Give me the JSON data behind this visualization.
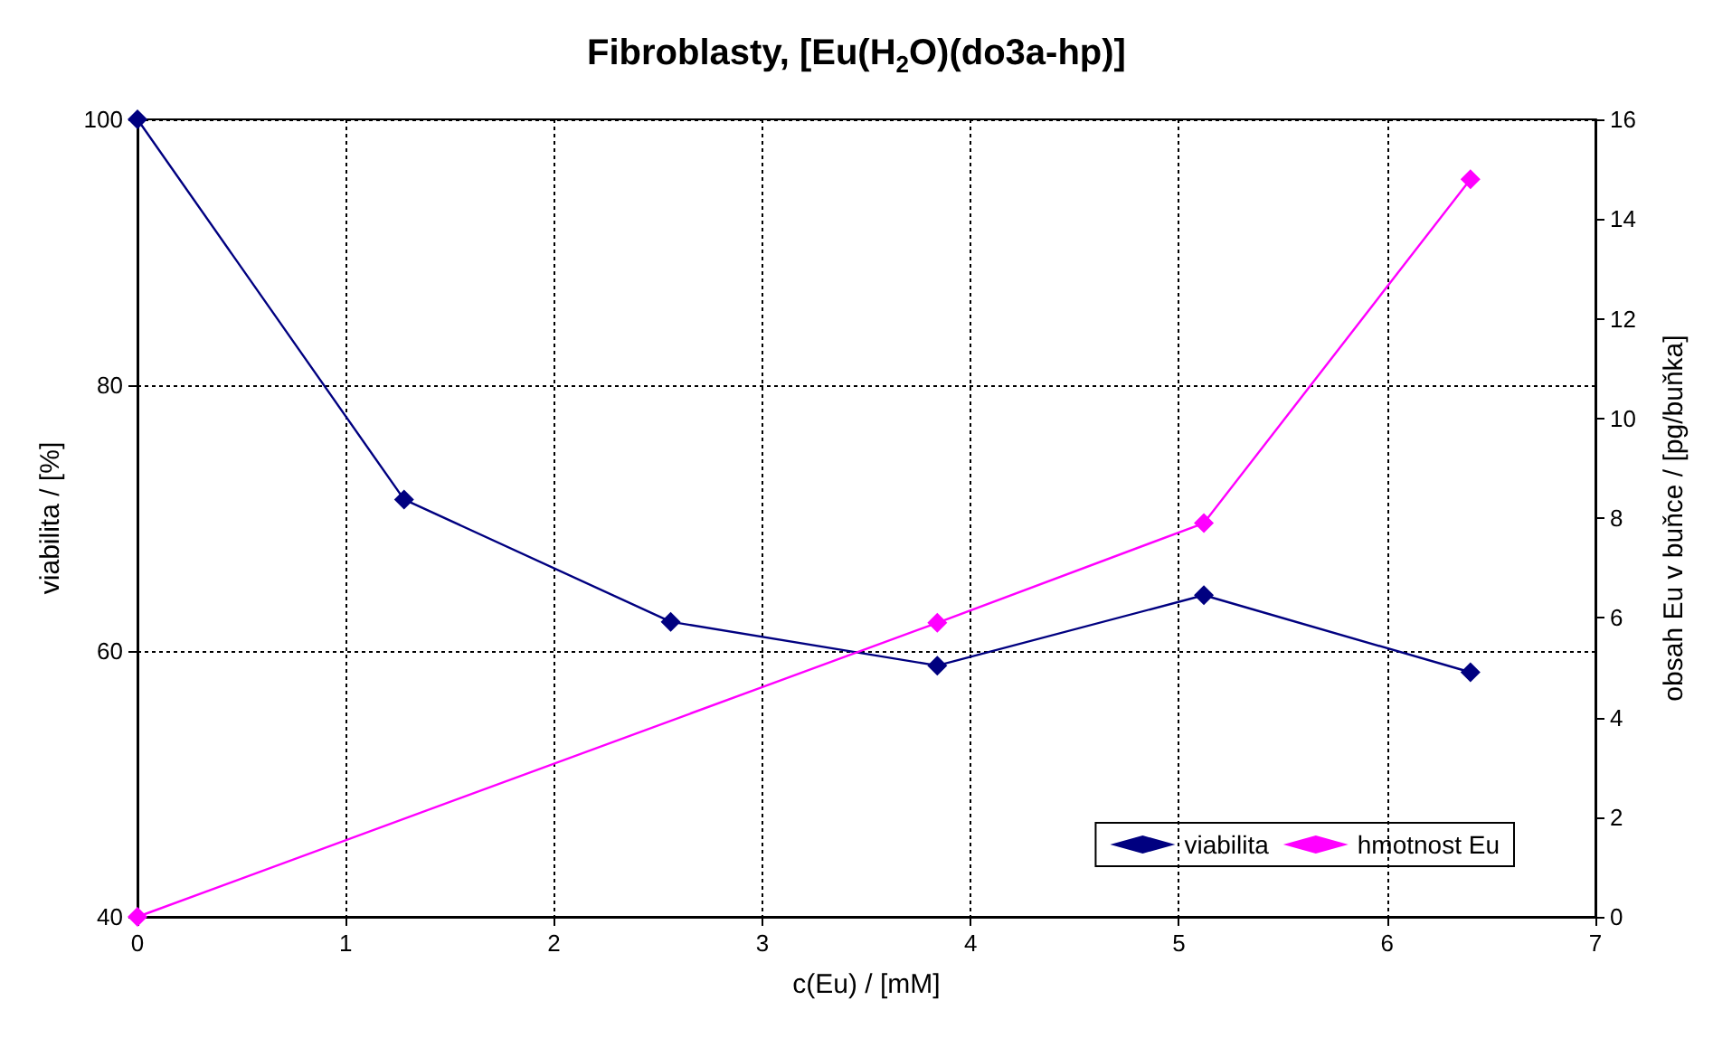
{
  "chart_data": {
    "type": "line",
    "title": "Fibroblasty, [Eu(H$_{2}$O)(do3a-hp)]",
    "xlabel": "c(Eu) / [mM]",
    "ylabel": "viabilita / [%]",
    "y2label": "obsah Eu v buňce / [pg/buňka]",
    "series": [
      {
        "name": "viabilita",
        "color": "#000080",
        "x": [
          0,
          1.28,
          2.56,
          3.84,
          5.12,
          6.4
        ],
        "values": [
          100,
          71.4,
          62.2,
          58.9,
          64.2,
          58.4
        ]
      },
      {
        "name": "hmotnost Eu",
        "color": "#ff00ff",
        "axis": "y2",
        "x": [
          0,
          3.84,
          5.12,
          6.4
        ],
        "values": [
          0,
          5.9,
          7.9,
          14.8
        ]
      }
    ],
    "xlim": [
      0,
      7
    ],
    "xticks": [
      0,
      1,
      2,
      3,
      4,
      5,
      6,
      7
    ],
    "ylim": [
      40,
      100
    ],
    "yticks": [
      40,
      60,
      80,
      100
    ],
    "y2lim": [
      0,
      16
    ],
    "y2ticks": [
      0,
      2,
      4,
      6,
      8,
      10,
      12,
      14,
      16
    ],
    "grid": true,
    "legend": "bottom right",
    "marker": "diamond",
    "line_style": "solid"
  }
}
